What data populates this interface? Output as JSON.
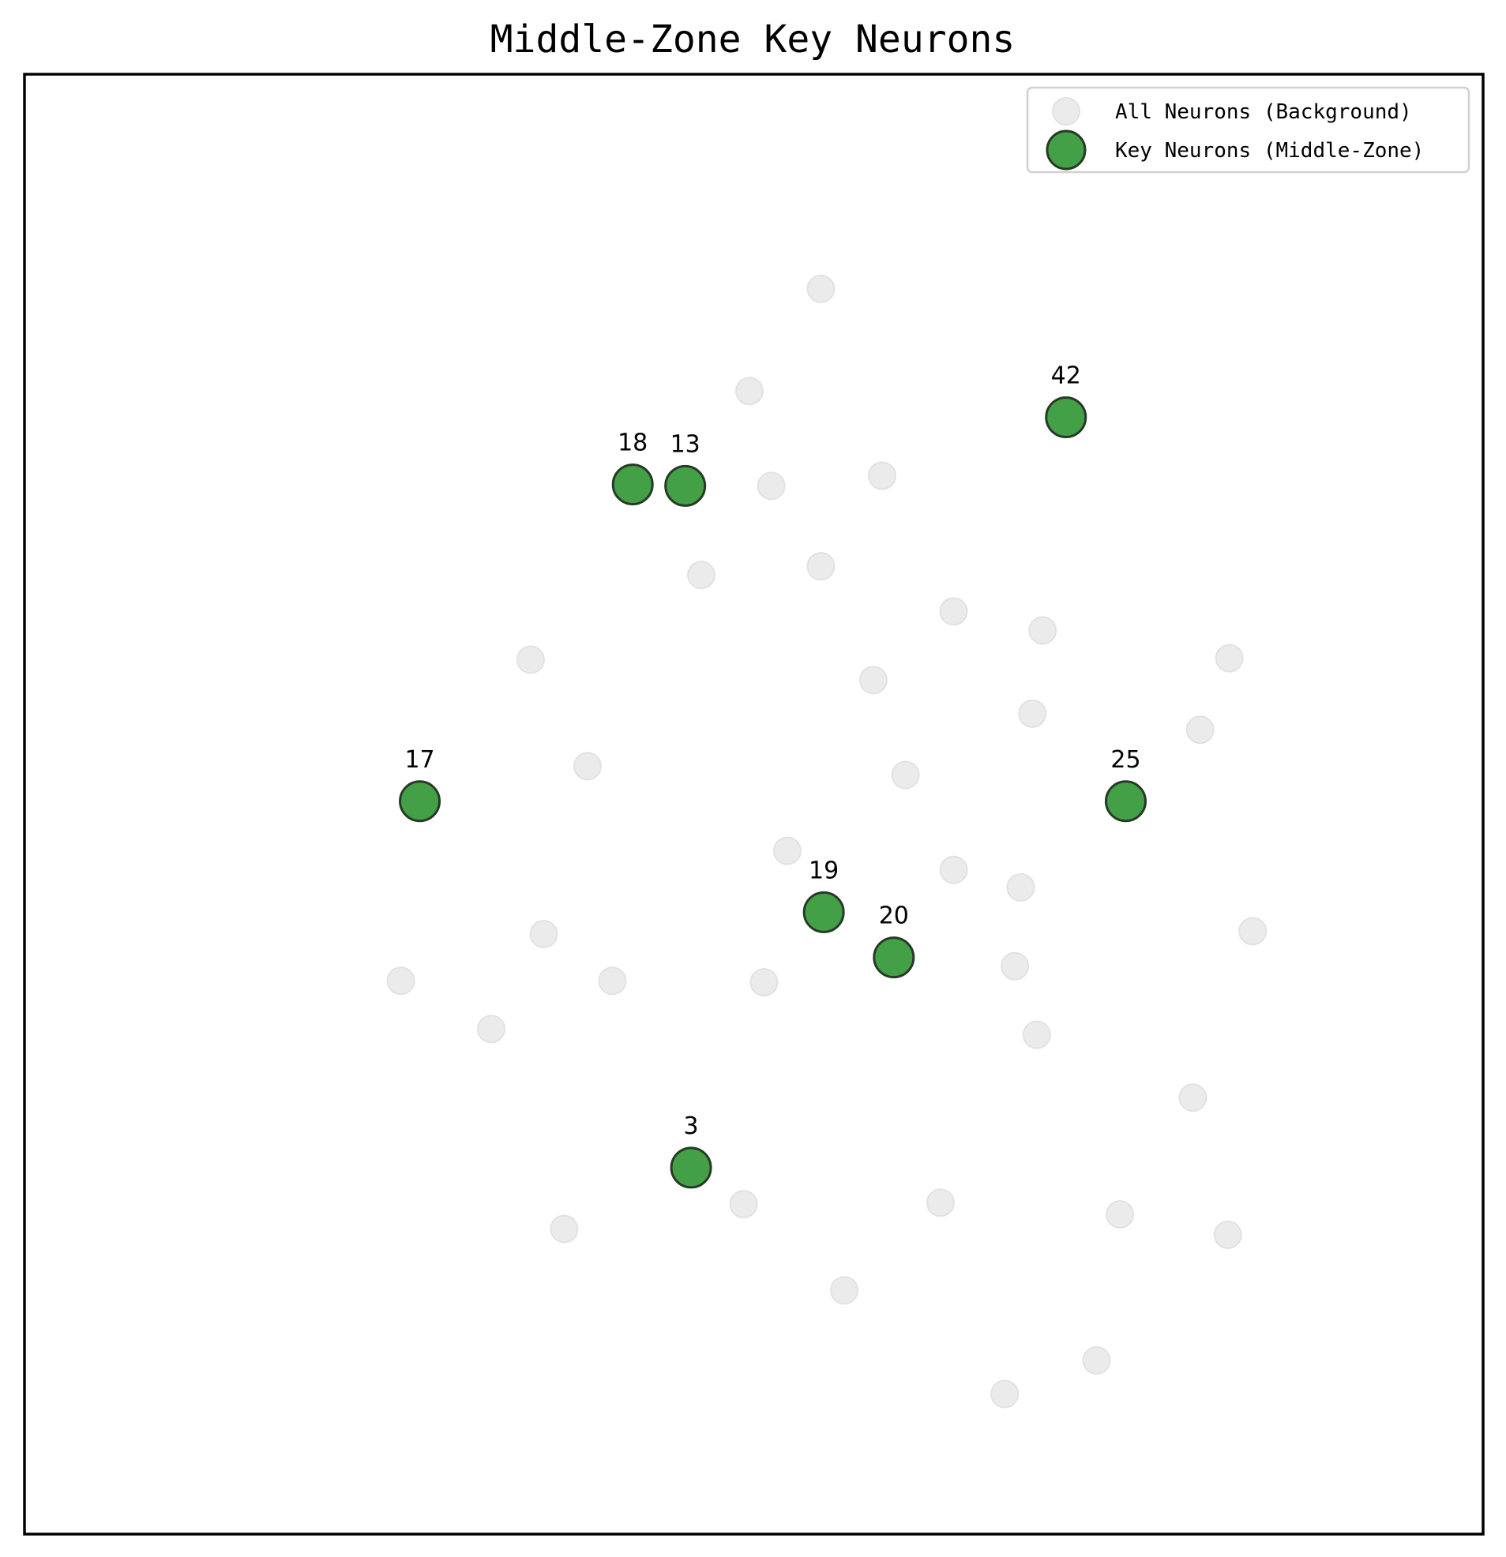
{
  "chart_data": {
    "type": "scatter",
    "title": "Middle-Zone Key Neurons",
    "xlabel": "",
    "ylabel": "",
    "xlim": [
      0,
      100
    ],
    "ylim": [
      0,
      100
    ],
    "grid": false,
    "legend_position": "top-right",
    "axes_ticks": false,
    "series": [
      {
        "name": "All Neurons (Background)",
        "color": "#ebebeb",
        "points": [
          {
            "x": 54.6,
            "y": 85.3
          },
          {
            "x": 49.7,
            "y": 78.3
          },
          {
            "x": 51.2,
            "y": 71.8
          },
          {
            "x": 58.8,
            "y": 72.5
          },
          {
            "x": 46.4,
            "y": 65.7
          },
          {
            "x": 54.6,
            "y": 66.3
          },
          {
            "x": 63.7,
            "y": 63.2
          },
          {
            "x": 69.8,
            "y": 61.9
          },
          {
            "x": 34.7,
            "y": 59.9
          },
          {
            "x": 58.2,
            "y": 58.5
          },
          {
            "x": 69.1,
            "y": 56.2
          },
          {
            "x": 82.6,
            "y": 60.0
          },
          {
            "x": 80.6,
            "y": 55.1
          },
          {
            "x": 38.6,
            "y": 52.6
          },
          {
            "x": 60.4,
            "y": 52.0
          },
          {
            "x": 52.3,
            "y": 46.8
          },
          {
            "x": 63.7,
            "y": 45.5
          },
          {
            "x": 68.3,
            "y": 44.3
          },
          {
            "x": 84.2,
            "y": 41.3
          },
          {
            "x": 35.6,
            "y": 41.1
          },
          {
            "x": 25.8,
            "y": 37.9
          },
          {
            "x": 40.3,
            "y": 37.9
          },
          {
            "x": 50.7,
            "y": 37.8
          },
          {
            "x": 67.9,
            "y": 38.9
          },
          {
            "x": 32.0,
            "y": 34.6
          },
          {
            "x": 69.4,
            "y": 34.2
          },
          {
            "x": 80.1,
            "y": 29.9
          },
          {
            "x": 49.3,
            "y": 22.6
          },
          {
            "x": 62.8,
            "y": 22.7
          },
          {
            "x": 75.1,
            "y": 21.9
          },
          {
            "x": 37.0,
            "y": 20.9
          },
          {
            "x": 82.5,
            "y": 20.5
          },
          {
            "x": 56.2,
            "y": 16.7
          },
          {
            "x": 73.5,
            "y": 11.9
          },
          {
            "x": 67.2,
            "y": 9.6
          }
        ]
      },
      {
        "name": "Key Neurons (Middle-Zone)",
        "color": "#43a047",
        "points": [
          {
            "x": 71.4,
            "y": 76.5,
            "label": "42"
          },
          {
            "x": 41.7,
            "y": 71.9,
            "label": "18"
          },
          {
            "x": 45.3,
            "y": 71.8,
            "label": "13"
          },
          {
            "x": 27.1,
            "y": 50.2,
            "label": "17"
          },
          {
            "x": 75.5,
            "y": 50.2,
            "label": "25"
          },
          {
            "x": 54.8,
            "y": 42.6,
            "label": "19"
          },
          {
            "x": 59.6,
            "y": 39.5,
            "label": "20"
          },
          {
            "x": 45.7,
            "y": 25.1,
            "label": "3"
          }
        ]
      }
    ]
  }
}
